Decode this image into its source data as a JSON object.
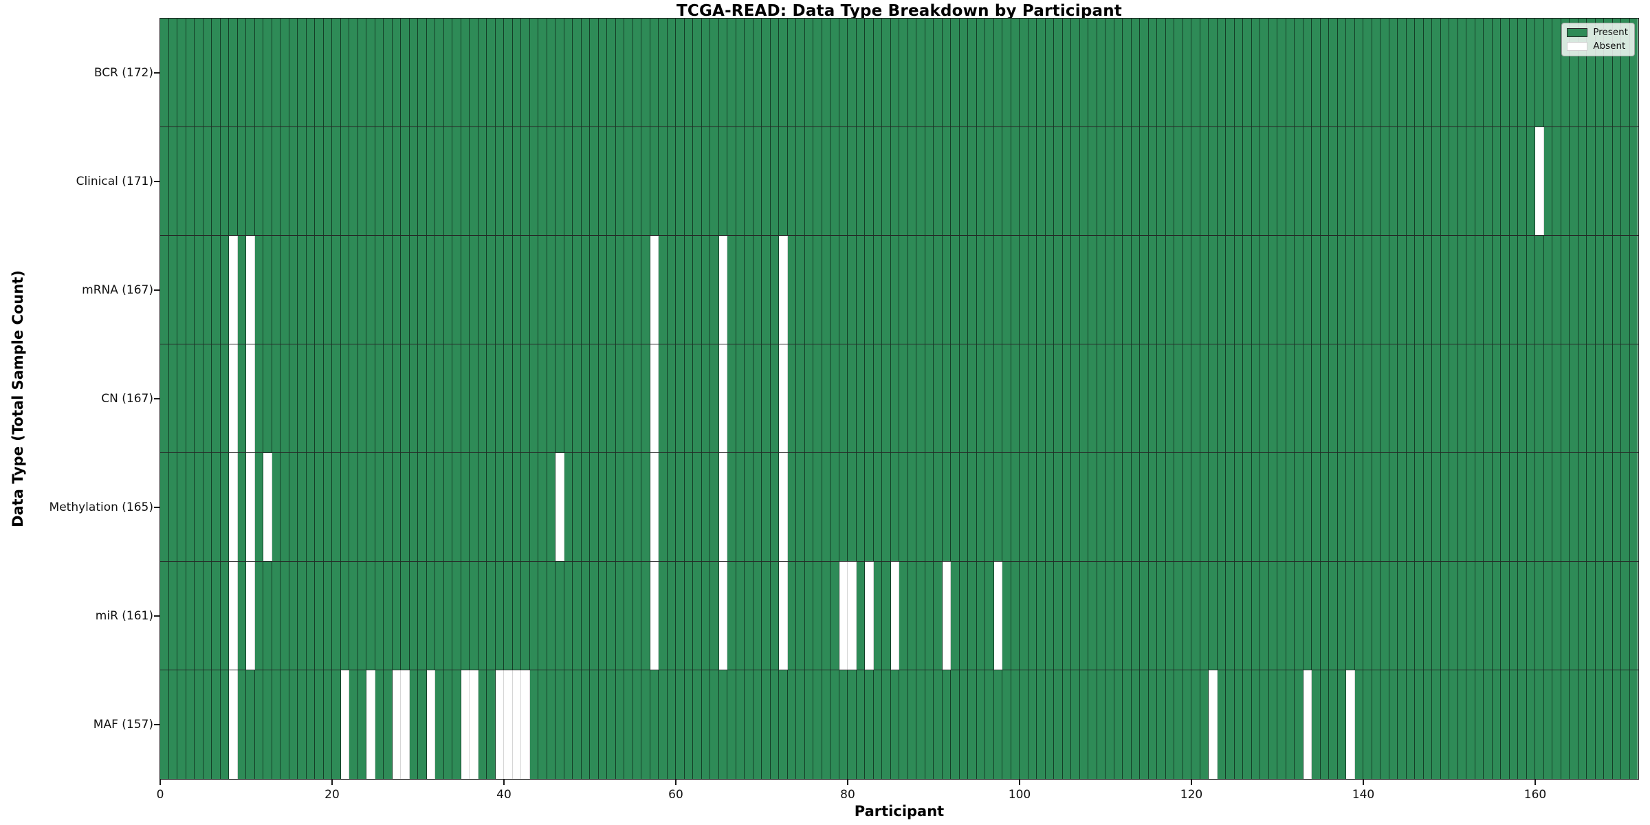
{
  "chart_data": {
    "type": "heatmap",
    "title": "TCGA-READ: Data Type Breakdown by Participant",
    "xlabel": "Participant",
    "ylabel": "Data Type (Total Sample Count)",
    "n_participants": 172,
    "x_ticks": [
      0,
      20,
      40,
      60,
      80,
      100,
      120,
      140,
      160
    ],
    "xlim": [
      0,
      172
    ],
    "grid": false,
    "legend_position": "upper right",
    "colors": {
      "present": "#2e8b57",
      "absent": "#ffffff"
    },
    "legend": [
      {
        "label": "Present",
        "color_key": "present"
      },
      {
        "label": "Absent",
        "color_key": "absent"
      }
    ],
    "rows": [
      {
        "label": "BCR (172)",
        "data_type": "BCR",
        "total_count": 172,
        "absent_participants": []
      },
      {
        "label": "Clinical (171)",
        "data_type": "Clinical",
        "total_count": 171,
        "absent_participants": [
          160
        ]
      },
      {
        "label": "mRNA (167)",
        "data_type": "mRNA",
        "total_count": 167,
        "absent_participants": [
          8,
          10,
          57,
          65,
          72
        ]
      },
      {
        "label": "CN (167)",
        "data_type": "CN",
        "total_count": 167,
        "absent_participants": [
          8,
          10,
          57,
          65,
          72
        ]
      },
      {
        "label": "Methylation (165)",
        "data_type": "Methylation",
        "total_count": 165,
        "absent_participants": [
          8,
          10,
          12,
          46,
          57,
          65,
          72
        ]
      },
      {
        "label": "miR (161)",
        "data_type": "miR",
        "total_count": 161,
        "absent_participants": [
          8,
          10,
          57,
          65,
          72,
          79,
          80,
          82,
          85,
          91,
          97
        ]
      },
      {
        "label": "MAF (157)",
        "data_type": "MAF",
        "total_count": 157,
        "absent_participants": [
          8,
          21,
          24,
          27,
          28,
          31,
          35,
          36,
          39,
          40,
          41,
          42,
          122,
          133,
          138
        ]
      }
    ]
  }
}
